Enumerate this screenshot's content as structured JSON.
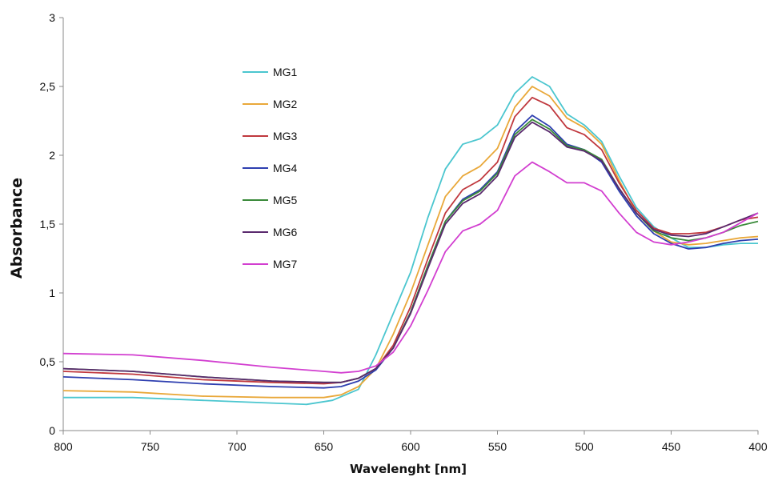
{
  "chart_data": {
    "type": "line",
    "xlabel": "Wavelenght [nm]",
    "ylabel": "Absorbance",
    "xlim": [
      800,
      400
    ],
    "ylim": [
      0,
      3
    ],
    "x_ticks": [
      "800",
      "750",
      "700",
      "650",
      "600",
      "550",
      "500",
      "450",
      "400"
    ],
    "y_ticks": [
      "0",
      "0,5",
      "1",
      "1,5",
      "2",
      "2,5",
      "3"
    ],
    "grid": false,
    "legend_position": "upper-left inside plot",
    "series": [
      {
        "name": "MG1",
        "color": "#4bc6cf",
        "points": [
          [
            800,
            0.24
          ],
          [
            760,
            0.24
          ],
          [
            720,
            0.22
          ],
          [
            680,
            0.2
          ],
          [
            660,
            0.19
          ],
          [
            645,
            0.22
          ],
          [
            630,
            0.3
          ],
          [
            620,
            0.55
          ],
          [
            610,
            0.85
          ],
          [
            600,
            1.15
          ],
          [
            590,
            1.55
          ],
          [
            580,
            1.9
          ],
          [
            570,
            2.08
          ],
          [
            560,
            2.12
          ],
          [
            550,
            2.22
          ],
          [
            540,
            2.45
          ],
          [
            530,
            2.57
          ],
          [
            520,
            2.5
          ],
          [
            510,
            2.3
          ],
          [
            500,
            2.22
          ],
          [
            490,
            2.1
          ],
          [
            480,
            1.85
          ],
          [
            470,
            1.62
          ],
          [
            460,
            1.48
          ],
          [
            450,
            1.4
          ],
          [
            440,
            1.33
          ],
          [
            430,
            1.33
          ],
          [
            420,
            1.35
          ],
          [
            410,
            1.36
          ],
          [
            400,
            1.36
          ]
        ]
      },
      {
        "name": "MG2",
        "color": "#e9a83a",
        "points": [
          [
            800,
            0.29
          ],
          [
            760,
            0.28
          ],
          [
            720,
            0.25
          ],
          [
            680,
            0.24
          ],
          [
            650,
            0.24
          ],
          [
            640,
            0.26
          ],
          [
            630,
            0.32
          ],
          [
            620,
            0.45
          ],
          [
            610,
            0.7
          ],
          [
            600,
            1.0
          ],
          [
            590,
            1.35
          ],
          [
            580,
            1.7
          ],
          [
            570,
            1.85
          ],
          [
            560,
            1.92
          ],
          [
            550,
            2.05
          ],
          [
            540,
            2.35
          ],
          [
            530,
            2.5
          ],
          [
            520,
            2.43
          ],
          [
            510,
            2.27
          ],
          [
            500,
            2.2
          ],
          [
            490,
            2.08
          ],
          [
            480,
            1.82
          ],
          [
            470,
            1.58
          ],
          [
            460,
            1.45
          ],
          [
            450,
            1.37
          ],
          [
            440,
            1.35
          ],
          [
            430,
            1.36
          ],
          [
            420,
            1.38
          ],
          [
            410,
            1.4
          ],
          [
            400,
            1.41
          ]
        ]
      },
      {
        "name": "MG3",
        "color": "#c0383e",
        "points": [
          [
            800,
            0.43
          ],
          [
            760,
            0.41
          ],
          [
            720,
            0.37
          ],
          [
            680,
            0.35
          ],
          [
            650,
            0.34
          ],
          [
            640,
            0.35
          ],
          [
            630,
            0.38
          ],
          [
            620,
            0.45
          ],
          [
            610,
            0.62
          ],
          [
            600,
            0.9
          ],
          [
            590,
            1.25
          ],
          [
            580,
            1.58
          ],
          [
            570,
            1.75
          ],
          [
            560,
            1.82
          ],
          [
            550,
            1.95
          ],
          [
            540,
            2.28
          ],
          [
            530,
            2.42
          ],
          [
            520,
            2.36
          ],
          [
            510,
            2.2
          ],
          [
            500,
            2.15
          ],
          [
            490,
            2.04
          ],
          [
            480,
            1.8
          ],
          [
            470,
            1.6
          ],
          [
            460,
            1.47
          ],
          [
            450,
            1.43
          ],
          [
            440,
            1.43
          ],
          [
            430,
            1.44
          ],
          [
            420,
            1.48
          ],
          [
            410,
            1.53
          ],
          [
            400,
            1.55
          ]
        ]
      },
      {
        "name": "MG4",
        "color": "#2e3fb0",
        "points": [
          [
            800,
            0.39
          ],
          [
            760,
            0.37
          ],
          [
            720,
            0.34
          ],
          [
            680,
            0.32
          ],
          [
            650,
            0.31
          ],
          [
            640,
            0.32
          ],
          [
            630,
            0.36
          ],
          [
            620,
            0.44
          ],
          [
            610,
            0.6
          ],
          [
            600,
            0.86
          ],
          [
            590,
            1.2
          ],
          [
            580,
            1.52
          ],
          [
            570,
            1.68
          ],
          [
            560,
            1.75
          ],
          [
            550,
            1.88
          ],
          [
            540,
            2.17
          ],
          [
            530,
            2.29
          ],
          [
            520,
            2.21
          ],
          [
            510,
            2.08
          ],
          [
            500,
            2.04
          ],
          [
            490,
            1.95
          ],
          [
            480,
            1.74
          ],
          [
            470,
            1.56
          ],
          [
            460,
            1.43
          ],
          [
            450,
            1.36
          ],
          [
            440,
            1.32
          ],
          [
            430,
            1.33
          ],
          [
            420,
            1.36
          ],
          [
            410,
            1.38
          ],
          [
            400,
            1.39
          ]
        ]
      },
      {
        "name": "MG5",
        "color": "#3a8a3a",
        "points": [
          [
            800,
            0.45
          ],
          [
            760,
            0.43
          ],
          [
            720,
            0.39
          ],
          [
            680,
            0.36
          ],
          [
            650,
            0.35
          ],
          [
            640,
            0.35
          ],
          [
            630,
            0.38
          ],
          [
            620,
            0.45
          ],
          [
            610,
            0.6
          ],
          [
            600,
            0.86
          ],
          [
            590,
            1.2
          ],
          [
            580,
            1.52
          ],
          [
            570,
            1.67
          ],
          [
            560,
            1.74
          ],
          [
            550,
            1.87
          ],
          [
            540,
            2.15
          ],
          [
            530,
            2.26
          ],
          [
            520,
            2.19
          ],
          [
            510,
            2.07
          ],
          [
            500,
            2.04
          ],
          [
            490,
            1.97
          ],
          [
            480,
            1.76
          ],
          [
            470,
            1.58
          ],
          [
            460,
            1.45
          ],
          [
            450,
            1.4
          ],
          [
            440,
            1.38
          ],
          [
            430,
            1.4
          ],
          [
            420,
            1.44
          ],
          [
            410,
            1.49
          ],
          [
            400,
            1.52
          ]
        ]
      },
      {
        "name": "MG6",
        "color": "#5a2a6e",
        "points": [
          [
            800,
            0.45
          ],
          [
            760,
            0.43
          ],
          [
            720,
            0.39
          ],
          [
            680,
            0.36
          ],
          [
            650,
            0.35
          ],
          [
            640,
            0.35
          ],
          [
            630,
            0.38
          ],
          [
            620,
            0.45
          ],
          [
            610,
            0.6
          ],
          [
            600,
            0.85
          ],
          [
            590,
            1.18
          ],
          [
            580,
            1.5
          ],
          [
            570,
            1.65
          ],
          [
            560,
            1.72
          ],
          [
            550,
            1.85
          ],
          [
            540,
            2.13
          ],
          [
            530,
            2.24
          ],
          [
            520,
            2.17
          ],
          [
            510,
            2.06
          ],
          [
            500,
            2.03
          ],
          [
            490,
            1.96
          ],
          [
            480,
            1.76
          ],
          [
            470,
            1.58
          ],
          [
            460,
            1.46
          ],
          [
            450,
            1.42
          ],
          [
            440,
            1.41
          ],
          [
            430,
            1.43
          ],
          [
            420,
            1.48
          ],
          [
            410,
            1.53
          ],
          [
            400,
            1.58
          ]
        ]
      },
      {
        "name": "MG7",
        "color": "#d23fd0",
        "points": [
          [
            800,
            0.56
          ],
          [
            760,
            0.55
          ],
          [
            720,
            0.51
          ],
          [
            680,
            0.46
          ],
          [
            650,
            0.43
          ],
          [
            640,
            0.42
          ],
          [
            630,
            0.43
          ],
          [
            620,
            0.47
          ],
          [
            610,
            0.57
          ],
          [
            600,
            0.76
          ],
          [
            590,
            1.02
          ],
          [
            580,
            1.3
          ],
          [
            570,
            1.45
          ],
          [
            560,
            1.5
          ],
          [
            550,
            1.6
          ],
          [
            540,
            1.85
          ],
          [
            530,
            1.95
          ],
          [
            520,
            1.88
          ],
          [
            510,
            1.8
          ],
          [
            500,
            1.8
          ],
          [
            490,
            1.74
          ],
          [
            480,
            1.58
          ],
          [
            470,
            1.44
          ],
          [
            460,
            1.37
          ],
          [
            450,
            1.35
          ],
          [
            440,
            1.37
          ],
          [
            430,
            1.4
          ],
          [
            420,
            1.44
          ],
          [
            410,
            1.51
          ],
          [
            400,
            1.58
          ]
        ]
      }
    ]
  }
}
